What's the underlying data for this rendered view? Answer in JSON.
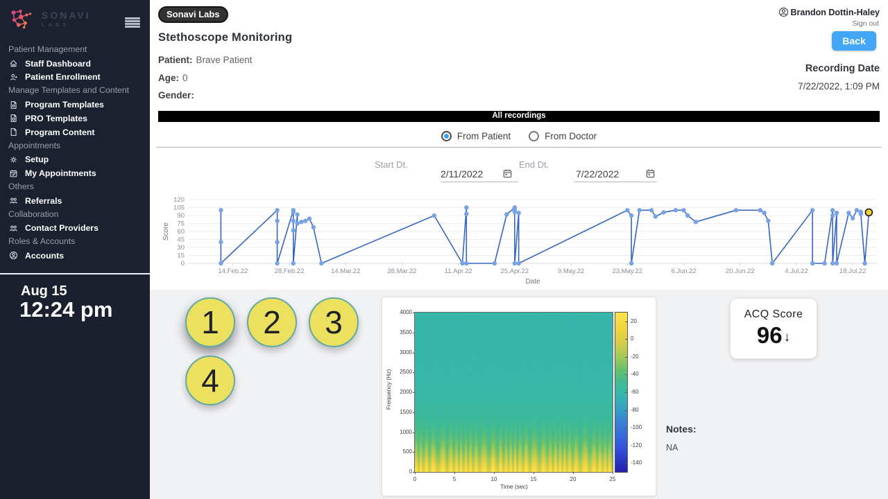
{
  "sidebar": {
    "brand_top": "SONAVI",
    "brand_bottom": "LABS",
    "sections": [
      {
        "header": "Patient Management",
        "items": [
          {
            "icon": "home",
            "label": "Staff Dashboard"
          },
          {
            "icon": "person-add",
            "label": "Patient Enrollment"
          }
        ]
      },
      {
        "header": "Manage Templates and Content",
        "items": [
          {
            "icon": "doc-gear",
            "label": "Program Templates"
          },
          {
            "icon": "doc-badge",
            "label": "PRO Templates"
          },
          {
            "icon": "doc",
            "label": "Program Content"
          }
        ]
      },
      {
        "header": "Appointments",
        "items": [
          {
            "icon": "gear",
            "label": "Setup"
          },
          {
            "icon": "calendar",
            "label": "My Appointments"
          }
        ]
      },
      {
        "header": "Others",
        "items": [
          {
            "icon": "people",
            "label": "Referrals"
          }
        ]
      },
      {
        "header": "Collaboration",
        "items": [
          {
            "icon": "people",
            "label": "Contact Providers"
          }
        ]
      },
      {
        "header": "Roles & Accounts",
        "items": [
          {
            "icon": "person-circle",
            "label": "Accounts"
          }
        ]
      }
    ],
    "clock": {
      "date": "Aug 15",
      "time": "12:24 pm"
    }
  },
  "header": {
    "badge": "Sonavi Labs",
    "user": "Brandon Dottin-Haley",
    "signout": "Sign out",
    "back_label": "Back"
  },
  "page": {
    "title": "Stethoscope Monitoring",
    "patient_label": "Patient:",
    "patient": "Brave Patient",
    "age_label": "Age:",
    "age": "0",
    "gender_label": "Gender:",
    "gender": "",
    "recording_date_label": "Recording Date",
    "recording_date": "7/22/2022, 1:09 PM"
  },
  "recordings": {
    "bar_label": "All recordings",
    "radios": [
      {
        "label": "From Patient",
        "selected": true
      },
      {
        "label": "From Doctor",
        "selected": false
      }
    ],
    "start": {
      "label": "Start Dt.",
      "value": "2/11/2022"
    },
    "end": {
      "label": "End Dt.",
      "value": "7/22/2022"
    }
  },
  "markers": [
    "1",
    "2",
    "3",
    "4"
  ],
  "acq": {
    "title": "ACQ Score",
    "value": "96",
    "arrow": "↓"
  },
  "notes": {
    "label": "Notes:",
    "value": "NA"
  },
  "chart_data": [
    {
      "type": "line",
      "xlabel": "Date",
      "ylabel": "Score",
      "ylim": [
        0,
        120
      ],
      "yticks": [
        0,
        15,
        30,
        45,
        60,
        75,
        90,
        105,
        120
      ],
      "x_unit": "days since 2022-02-08",
      "xlim": [
        -5,
        166
      ],
      "xticks": [
        {
          "x": 6,
          "label": "14.Feb.22"
        },
        {
          "x": 20,
          "label": "28.Feb.22"
        },
        {
          "x": 34,
          "label": "14.Mar.22"
        },
        {
          "x": 48,
          "label": "28.Mar.22"
        },
        {
          "x": 62,
          "label": "11.Apr.22"
        },
        {
          "x": 76,
          "label": "25.Apr.22"
        },
        {
          "x": 90,
          "label": "9.May.22"
        },
        {
          "x": 104,
          "label": "23.May.22"
        },
        {
          "x": 118,
          "label": "6.Jun.22"
        },
        {
          "x": 132,
          "label": "20.Jun.22"
        },
        {
          "x": 146,
          "label": "4.Jul.22"
        },
        {
          "x": 160,
          "label": "18.Jul.22"
        }
      ],
      "points": [
        [
          3,
          100
        ],
        [
          3,
          40
        ],
        [
          3,
          0
        ],
        [
          17,
          100
        ],
        [
          17,
          80
        ],
        [
          17,
          40
        ],
        [
          17,
          0
        ],
        [
          21,
          100
        ],
        [
          21,
          97
        ],
        [
          21,
          80
        ],
        [
          21,
          62
        ],
        [
          21,
          0
        ],
        [
          22,
          92
        ],
        [
          22,
          75
        ],
        [
          23,
          78
        ],
        [
          24,
          80
        ],
        [
          25,
          84
        ],
        [
          26,
          68
        ],
        [
          28,
          0
        ],
        [
          56,
          90
        ],
        [
          63,
          0
        ],
        [
          64,
          105
        ],
        [
          64,
          93
        ],
        [
          64,
          0
        ],
        [
          71,
          0
        ],
        [
          74,
          92
        ],
        [
          76,
          105
        ],
        [
          76,
          100
        ],
        [
          76,
          97
        ],
        [
          76,
          0
        ],
        [
          77,
          95
        ],
        [
          77,
          0
        ],
        [
          104,
          100
        ],
        [
          105,
          90
        ],
        [
          105,
          0
        ],
        [
          107,
          100
        ],
        [
          110,
          100
        ],
        [
          111,
          88
        ],
        [
          113,
          96
        ],
        [
          116,
          100
        ],
        [
          118,
          100
        ],
        [
          119,
          90
        ],
        [
          121,
          78
        ],
        [
          131,
          100
        ],
        [
          137,
          100
        ],
        [
          138,
          95
        ],
        [
          139,
          80
        ],
        [
          140,
          0
        ],
        [
          150,
          100
        ],
        [
          150,
          0
        ],
        [
          153,
          0
        ],
        [
          155,
          100
        ],
        [
          155,
          90
        ],
        [
          155,
          0
        ],
        [
          156,
          95
        ],
        [
          156,
          0
        ],
        [
          159,
          95
        ],
        [
          160,
          85
        ],
        [
          161,
          100
        ],
        [
          162,
          97
        ],
        [
          162,
          93
        ],
        [
          163,
          0
        ],
        [
          164,
          96
        ]
      ],
      "highlight_last_point": true,
      "line_color": "#3465c4",
      "point_color": "#78a2e4",
      "highlight_fill": "#f0cf3d",
      "grid": true,
      "legend": "none"
    },
    {
      "type": "heatmap",
      "xlabel": "Time (sec)",
      "ylabel": "Frequency (Hz)",
      "xlim": [
        0,
        25
      ],
      "ylim": [
        0,
        4000
      ],
      "xticks": [
        0,
        5,
        10,
        15,
        20,
        25
      ],
      "yticks": [
        0,
        500,
        1000,
        1500,
        2000,
        2500,
        3000,
        3500,
        4000
      ],
      "colorbar": {
        "range": [
          30,
          -150
        ],
        "ticks": [
          20,
          0,
          -20,
          -40,
          -60,
          -80,
          -100,
          -120,
          -140
        ]
      },
      "palette": [
        [
          30,
          "#f9e54a"
        ],
        [
          10,
          "#f0d23f"
        ],
        [
          -5,
          "#d4ce48"
        ],
        [
          -20,
          "#a3ca58"
        ],
        [
          -35,
          "#66c06e"
        ],
        [
          -50,
          "#3fbb93"
        ],
        [
          -62,
          "#38b6ab"
        ],
        [
          -75,
          "#35a8c0"
        ],
        [
          -95,
          "#3a7fd6"
        ],
        [
          -120,
          "#3756e0"
        ],
        [
          -150,
          "#221fae"
        ]
      ],
      "description": "Spectrogram: high energy (yellow/orange) band below ~600 Hz with periodic vertical bursts; mid and high frequencies near -60 dB (teal) with faint green vertical streaks up to ~1300 Hz."
    }
  ]
}
